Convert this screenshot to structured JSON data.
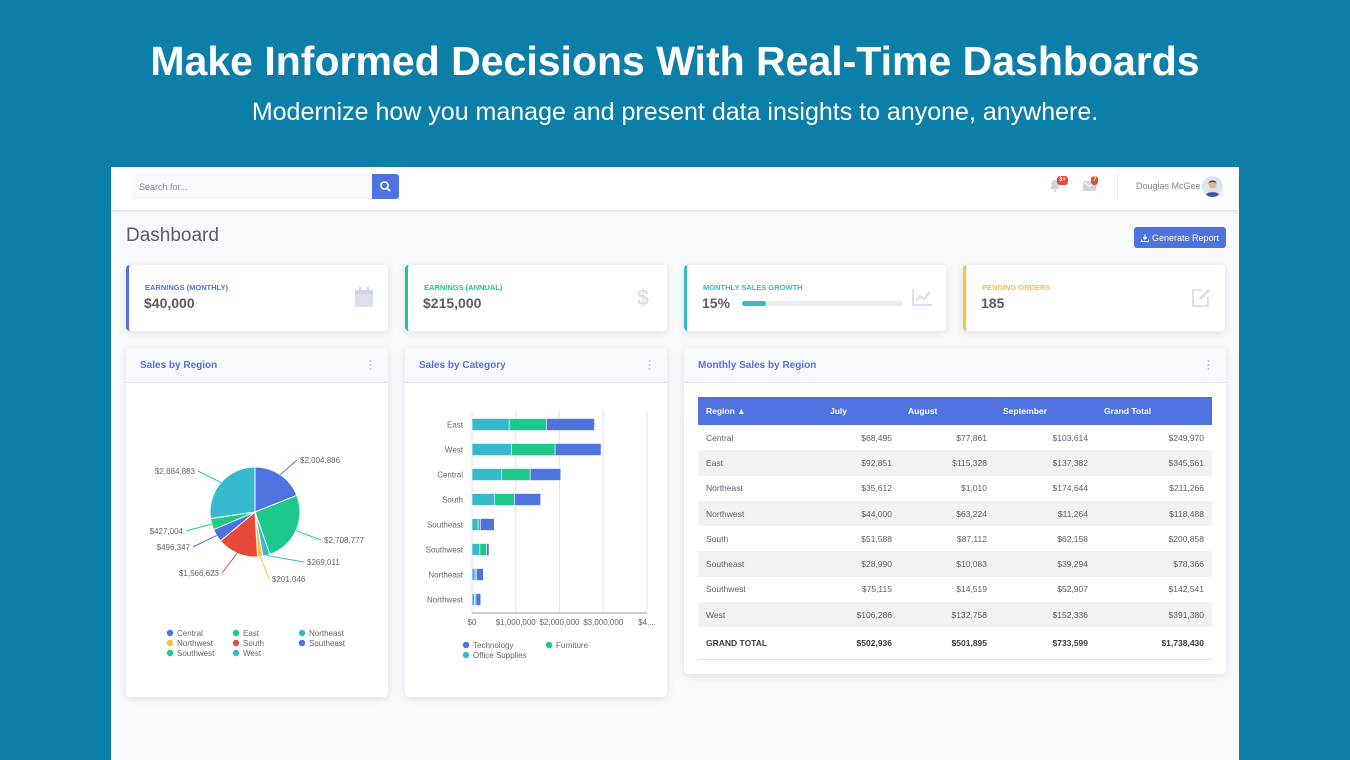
{
  "hero": {
    "title": "Make Informed Decisions With Real-Time Dashboards",
    "subtitle": "Modernize how you manage and present data insights to anyone, anywhere."
  },
  "topbar": {
    "search_placeholder": "Search for...",
    "alerts_badge": "3+",
    "messages_badge": "7",
    "user_name": "Douglas McGee"
  },
  "page": {
    "title": "Dashboard",
    "generate_label": "Generate Report"
  },
  "kpis": [
    {
      "label": "Earnings (Monthly)",
      "value": "$40,000",
      "color": "#4e73df",
      "icon": "calendar-icon"
    },
    {
      "label": "Earnings (Annual)",
      "value": "$215,000",
      "color": "#1cc88a",
      "icon": "dollar-icon"
    },
    {
      "label": "Monthly Sales Growth",
      "value": "15%",
      "progress": 15,
      "color": "#36b9cc",
      "icon": "chart-area-icon"
    },
    {
      "label": "Pending Orders",
      "value": "185",
      "color": "#f6c23e",
      "icon": "edit-icon"
    }
  ],
  "cards": {
    "sales_by_region": "Sales by Region",
    "sales_by_category": "Sales by Category",
    "monthly_sales": "Monthly Sales by Region"
  },
  "chart_data": [
    {
      "type": "pie",
      "title": "Sales by Region",
      "categories": [
        "Central",
        "East",
        "Northeast",
        "Northwest",
        "South",
        "Southeast",
        "Southwest",
        "West"
      ],
      "values": [
        2004886,
        2708777,
        269011,
        201046,
        1566623,
        496347,
        427004,
        2884883
      ],
      "data_labels": [
        "$2,004,886",
        "$2,708,777",
        "$269,011",
        "$201,046",
        "$1,566,623",
        "$496,347",
        "$427,004",
        "$2,884,883"
      ],
      "colors": [
        "#4e73df",
        "#1cc88a",
        "#36b9cc",
        "#f6c23e",
        "#e74a3b",
        "#4e73df",
        "#1cc88a",
        "#36b9cc"
      ],
      "legend": [
        "Central",
        "East",
        "Northeast",
        "Northwest",
        "South",
        "Southeast",
        "Southwest",
        "West"
      ]
    },
    {
      "type": "bar",
      "orientation": "horizontal",
      "stacked": true,
      "title": "Sales by Category",
      "categories": [
        "East",
        "West",
        "Central",
        "South",
        "Southeast",
        "Southwest",
        "Northeast",
        "Northwest"
      ],
      "series": [
        {
          "name": "Office Supplies",
          "color": "#36b9cc",
          "values": [
            850000,
            900000,
            680000,
            520000,
            140000,
            180000,
            70000,
            60000
          ]
        },
        {
          "name": "Furniture",
          "color": "#1cc88a",
          "values": [
            850000,
            1000000,
            650000,
            450000,
            50000,
            150000,
            30000,
            30000
          ]
        },
        {
          "name": "Technology",
          "color": "#4e73df",
          "values": [
            1100000,
            1050000,
            700000,
            600000,
            320000,
            60000,
            160000,
            110000
          ]
        }
      ],
      "xticks": [
        "$0",
        "$1,000,000",
        "$2,000,000",
        "$3,000,000",
        "$4,..."
      ],
      "xlim": [
        0,
        4000000
      ],
      "legend": [
        "Technology",
        "Furniture",
        "Office Supplies"
      ]
    }
  ],
  "table": {
    "headers": [
      "Region ▲",
      "July",
      "August",
      "September",
      "Grand Total"
    ],
    "rows": [
      [
        "Central",
        "$68,495",
        "$77,861",
        "$103,614",
        "$249,970"
      ],
      [
        "East",
        "$92,851",
        "$115,328",
        "$137,382",
        "$345,561"
      ],
      [
        "Northeast",
        "$35,612",
        "$1,010",
        "$174,644",
        "$211,266"
      ],
      [
        "Northwest",
        "$44,000",
        "$63,224",
        "$11,264",
        "$118,488"
      ],
      [
        "South",
        "$51,588",
        "$87,112",
        "$62,158",
        "$200,858"
      ],
      [
        "Southeast",
        "$28,990",
        "$10,083",
        "$39,294",
        "$78,366"
      ],
      [
        "Southwest",
        "$75,115",
        "$14,519",
        "$52,907",
        "$142,541"
      ],
      [
        "West",
        "$106,286",
        "$132,758",
        "$152,336",
        "$391,380"
      ]
    ],
    "total": [
      "GRAND TOTAL",
      "$502,936",
      "$501,895",
      "$733,599",
      "$1,738,430"
    ]
  }
}
